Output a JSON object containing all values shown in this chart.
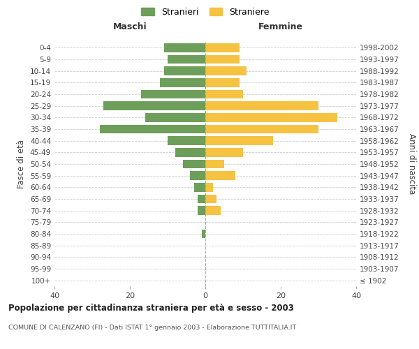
{
  "age_groups": [
    "100+",
    "95-99",
    "90-94",
    "85-89",
    "80-84",
    "75-79",
    "70-74",
    "65-69",
    "60-64",
    "55-59",
    "50-54",
    "45-49",
    "40-44",
    "35-39",
    "30-34",
    "25-29",
    "20-24",
    "15-19",
    "10-14",
    "5-9",
    "0-4"
  ],
  "birth_years": [
    "≤ 1902",
    "1903-1907",
    "1908-1912",
    "1913-1917",
    "1918-1922",
    "1923-1927",
    "1928-1932",
    "1933-1937",
    "1938-1942",
    "1943-1947",
    "1948-1952",
    "1953-1957",
    "1958-1962",
    "1963-1967",
    "1968-1972",
    "1973-1977",
    "1978-1982",
    "1983-1987",
    "1988-1992",
    "1993-1997",
    "1998-2002"
  ],
  "maschi": [
    0,
    0,
    0,
    0,
    1,
    0,
    2,
    2,
    3,
    4,
    6,
    8,
    10,
    28,
    16,
    27,
    17,
    12,
    11,
    10,
    11
  ],
  "femmine": [
    0,
    0,
    0,
    0,
    0,
    0,
    4,
    3,
    2,
    8,
    5,
    10,
    18,
    30,
    35,
    30,
    10,
    9,
    11,
    9,
    9
  ],
  "maschi_color": "#6d9e5a",
  "femmine_color": "#f5c242",
  "background_color": "#ffffff",
  "grid_color": "#cccccc",
  "title": "Popolazione per cittadinanza straniera per età e sesso - 2003",
  "subtitle": "COMUNE DI CALENZANO (FI) - Dati ISTAT 1° gennaio 2003 - Elaborazione TUTTITALIA.IT",
  "xlabel_maschi": "Maschi",
  "xlabel_femmine": "Femmine",
  "ylabel_left": "Fasce di età",
  "ylabel_right": "Anni di nascita",
  "legend_maschi": "Stranieri",
  "legend_femmine": "Straniere",
  "xlim": 40
}
